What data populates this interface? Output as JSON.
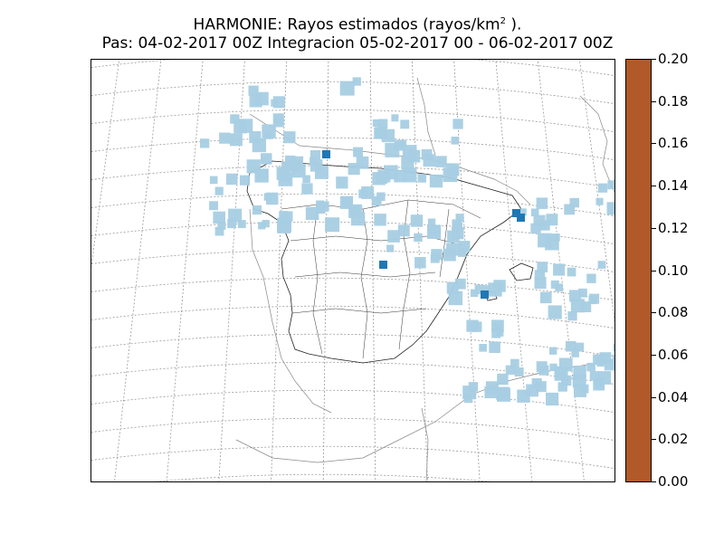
{
  "title": {
    "line1": "HARMONIE: Rayos estimados  (rayos/km",
    "line1_sup": "2",
    "line1_end": " ).",
    "line2": "Pas: 04-02-2017 00Z Integracion 05-02-2017 00 - 06-02-2017 00Z"
  },
  "colorbar": {
    "ticks": [
      "0.00",
      "0.02",
      "0.04",
      "0.06",
      "0.08",
      "0.10",
      "0.12",
      "0.14",
      "0.16",
      "0.18",
      "0.20"
    ],
    "min": 0.0,
    "max": 0.2,
    "colors": [
      "#a6cee3",
      "#1f78b4",
      "#b2df8a",
      "#33a02c",
      "#fb9a99",
      "#e31a1c",
      "#fdbf6f",
      "#ff7f00",
      "#cab2d6",
      "#6a3d9a",
      "#ffff99",
      "#b15928"
    ]
  },
  "map": {
    "region": "Iberian Peninsula and Balearic Islands",
    "graticule": "dashed grey",
    "lightning_color": "#a6cee3",
    "lightning_peak_color": "#1f78b4"
  }
}
